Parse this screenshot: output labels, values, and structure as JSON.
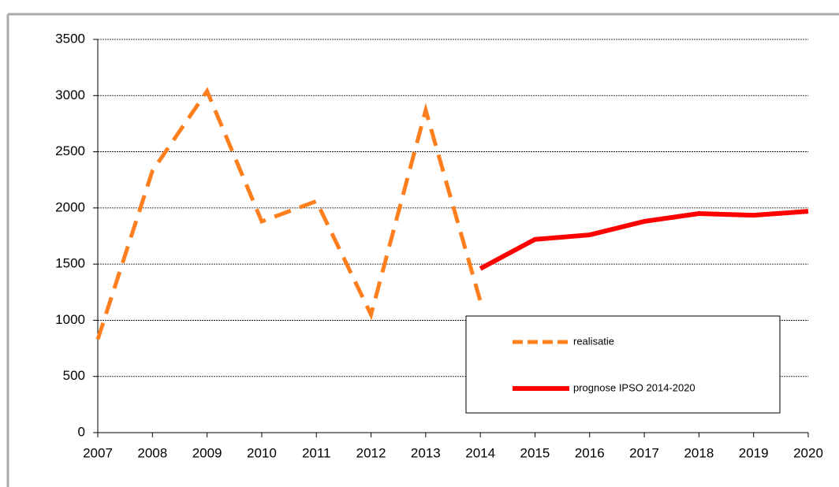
{
  "chart_data": {
    "type": "line",
    "x": [
      2007,
      2008,
      2009,
      2010,
      2011,
      2012,
      2013,
      2014,
      2015,
      2016,
      2017,
      2018,
      2019,
      2020
    ],
    "series": [
      {
        "name": "realisatie",
        "color": "#ff7f1e",
        "dashed": true,
        "values": [
          830,
          2330,
          3040,
          1880,
          2060,
          1050,
          2870,
          1170,
          null,
          null,
          null,
          null,
          null,
          null
        ]
      },
      {
        "name": "prognose IPSO 2014-2020",
        "color": "#ff0000",
        "dashed": false,
        "values": [
          null,
          null,
          null,
          null,
          null,
          null,
          null,
          1460,
          1720,
          1760,
          1880,
          1950,
          1935,
          1970
        ]
      }
    ],
    "xlim": [
      2007,
      2020
    ],
    "xticks": [
      2007,
      2008,
      2009,
      2010,
      2011,
      2012,
      2013,
      2014,
      2015,
      2016,
      2017,
      2018,
      2019,
      2020
    ],
    "ylim": [
      0,
      3500
    ],
    "yticks": [
      0,
      500,
      1000,
      1500,
      2000,
      2500,
      3000,
      3500
    ],
    "grid": true
  }
}
